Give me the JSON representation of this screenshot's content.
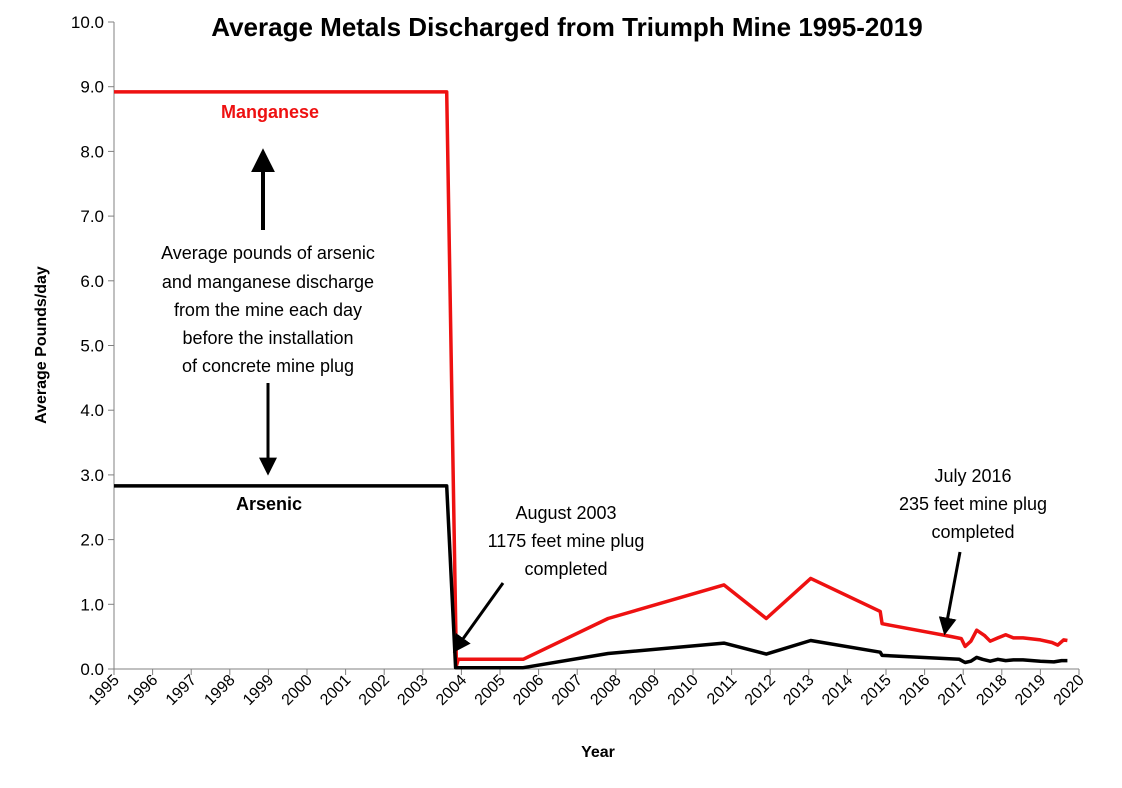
{
  "chart_data": {
    "type": "line",
    "title": "Average Metals Discharged from Triumph Mine 1995-2019",
    "xlabel": "Year",
    "ylabel": "Average Pounds/day",
    "xlim": [
      1995,
      2020
    ],
    "ylim": [
      0,
      10
    ],
    "x_ticks": [
      "1995",
      "1996",
      "1997",
      "1998",
      "1999",
      "2000",
      "2001",
      "2002",
      "2003",
      "2004",
      "2005",
      "2006",
      "2007",
      "2008",
      "2009",
      "2010",
      "2011",
      "2012",
      "2013",
      "2014",
      "2015",
      "2016",
      "2017",
      "2018",
      "2019",
      "2020"
    ],
    "y_ticks": [
      "0.0",
      "1.0",
      "2.0",
      "3.0",
      "4.0",
      "5.0",
      "6.0",
      "7.0",
      "8.0",
      "9.0",
      "10.0"
    ],
    "grid": false,
    "series": [
      {
        "name": "Manganese",
        "color": "#ee1111",
        "x": [
          1995.0,
          2003.62,
          2003.87,
          2003.92,
          2005.6,
          2007.8,
          2010.8,
          2011.9,
          2013.05,
          2014.85,
          2014.9,
          2016.7,
          2016.95,
          2017.05,
          2017.2,
          2017.35,
          2017.55,
          2017.7,
          2017.9,
          2018.1,
          2018.3,
          2018.55,
          2019.0,
          2019.3,
          2019.45,
          2019.6,
          2019.7
        ],
        "y": [
          8.92,
          8.92,
          0.05,
          0.15,
          0.15,
          0.78,
          1.3,
          0.78,
          1.4,
          0.89,
          0.7,
          0.5,
          0.47,
          0.35,
          0.43,
          0.6,
          0.52,
          0.43,
          0.48,
          0.53,
          0.48,
          0.48,
          0.45,
          0.41,
          0.37,
          0.45,
          0.44
        ]
      },
      {
        "name": "Arsenic",
        "color": "#000000",
        "x": [
          1995.0,
          2003.62,
          2003.85,
          2005.6,
          2007.8,
          2010.8,
          2011.9,
          2013.05,
          2014.85,
          2014.9,
          2016.9,
          2017.05,
          2017.2,
          2017.35,
          2017.5,
          2017.7,
          2017.9,
          2018.1,
          2018.3,
          2018.55,
          2019.0,
          2019.35,
          2019.55,
          2019.7
        ],
        "y": [
          2.83,
          2.83,
          0.02,
          0.02,
          0.24,
          0.4,
          0.23,
          0.44,
          0.26,
          0.21,
          0.15,
          0.1,
          0.12,
          0.18,
          0.15,
          0.12,
          0.15,
          0.13,
          0.14,
          0.14,
          0.12,
          0.11,
          0.13,
          0.13
        ]
      }
    ],
    "annotations": [
      {
        "name": "manganese-label",
        "text": "Manganese",
        "color": "#ee1111"
      },
      {
        "name": "arsenic-label",
        "text": "Arsenic",
        "color": "#000000"
      },
      {
        "name": "before-plug-note",
        "lines": [
          "Average pounds  of arsenic",
          "and manganese discharge",
          "from the mine each day",
          "before the installation",
          "of concrete mine plug"
        ]
      },
      {
        "name": "plug-2003-note",
        "lines": [
          "August  2003",
          "1175 feet  mine plug",
          "completed"
        ]
      },
      {
        "name": "plug-2016-note",
        "lines": [
          "July  2016",
          "235 feet  mine plug",
          "completed"
        ]
      }
    ]
  }
}
